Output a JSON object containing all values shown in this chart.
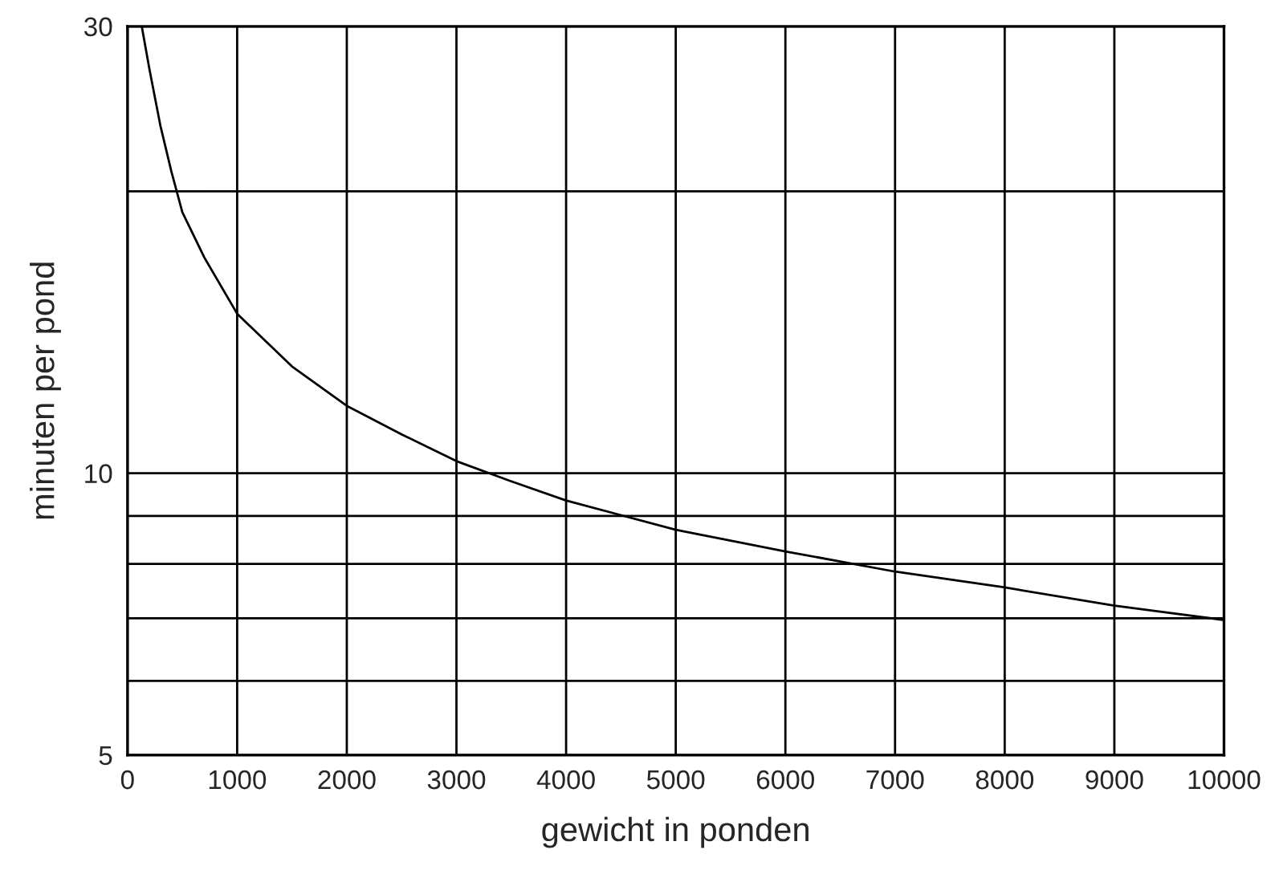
{
  "chart_data": {
    "type": "line",
    "xlabel": "gewicht in ponden",
    "ylabel": "minuten per pond",
    "x": [
      130,
      200,
      300,
      400,
      500,
      700,
      1000,
      1500,
      2000,
      2500,
      3000,
      3500,
      4000,
      5000,
      6000,
      7000,
      8000,
      9000,
      10000
    ],
    "series": [
      {
        "color": "#000000",
        "values": [
          30,
          27,
          23.5,
          21,
          19,
          17,
          14.8,
          13,
          11.8,
          11,
          10.3,
          9.8,
          9.35,
          8.7,
          8.25,
          7.85,
          7.55,
          7.22,
          6.97
        ]
      }
    ],
    "log": "y",
    "xlim": [
      0,
      10000
    ],
    "ylim": [
      5,
      30
    ],
    "xticks": [
      0,
      1000,
      2000,
      3000,
      4000,
      5000,
      6000,
      7000,
      8000,
      9000,
      10000
    ],
    "yticks": [
      5,
      {
        "value": 6,
        "label": null
      },
      {
        "value": 7,
        "label": null
      },
      {
        "value": 8,
        "label": null
      },
      {
        "value": 9,
        "label": null
      },
      10,
      {
        "value": 20,
        "label": null
      },
      30
    ],
    "grid": true,
    "marker": "none",
    "line_style": "solid"
  }
}
